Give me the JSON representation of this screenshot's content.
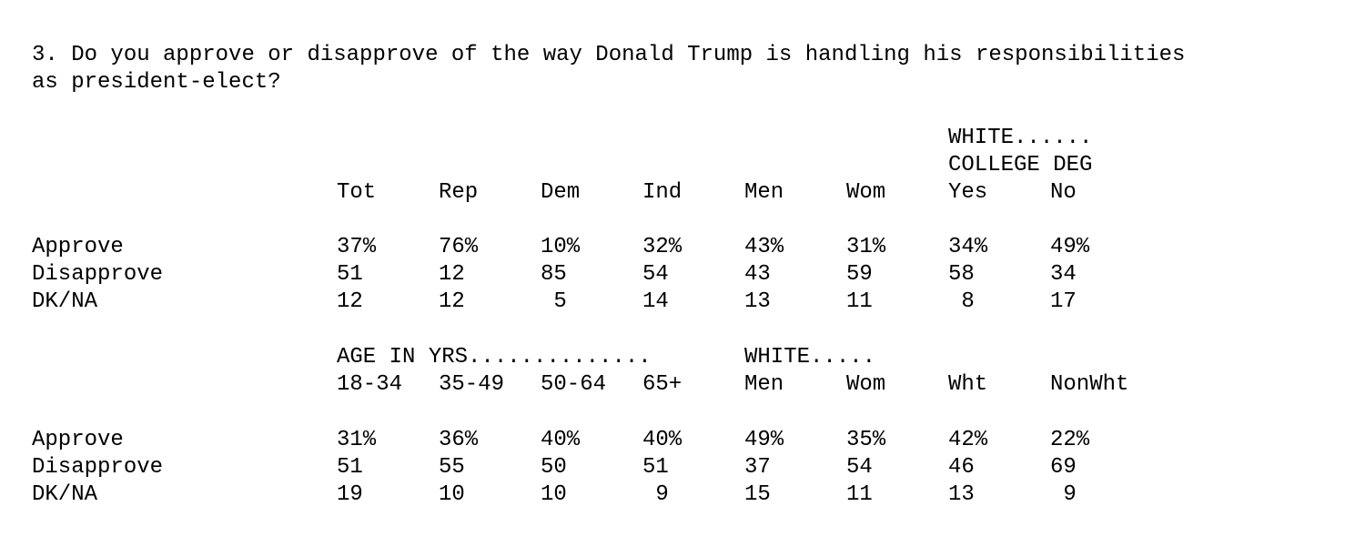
{
  "question": {
    "line1": "3. Do you approve or disapprove of the way Donald Trump is handling his responsibilities",
    "line2": "as president-elect?"
  },
  "table1": {
    "group_header_line1": "WHITE......",
    "group_header_line2": "COLLEGE DEG",
    "columns": [
      "Tot",
      "Rep",
      "Dem",
      "Ind",
      "Men",
      "Wom",
      "Yes",
      "No"
    ],
    "rows": [
      {
        "label": "Approve",
        "values": [
          "37%",
          "76%",
          "10%",
          "32%",
          "43%",
          "31%",
          "34%",
          "49%"
        ]
      },
      {
        "label": "Disapprove",
        "values": [
          "51",
          "12",
          "85",
          "54",
          "43",
          "59",
          "58",
          "34"
        ]
      },
      {
        "label": "DK/NA",
        "values": [
          "12",
          "12",
          " 5",
          "14",
          "13",
          "11",
          " 8",
          "17"
        ]
      }
    ]
  },
  "table2": {
    "group_header_age": "AGE IN YRS..............",
    "group_header_white": "WHITE.....",
    "columns": [
      "18-34",
      "35-49",
      "50-64",
      "65+",
      "Men",
      "Wom",
      "Wht",
      "NonWht"
    ],
    "rows": [
      {
        "label": "Approve",
        "values": [
          "31%",
          "36%",
          "40%",
          "40%",
          "49%",
          "35%",
          "42%",
          "22%"
        ]
      },
      {
        "label": "Disapprove",
        "values": [
          "51",
          "55",
          "50",
          "51",
          "37",
          "54",
          "46",
          "69"
        ]
      },
      {
        "label": "DK/NA",
        "values": [
          "19",
          "10",
          "10",
          " 9",
          "15",
          "11",
          "13",
          " 9"
        ]
      }
    ]
  }
}
